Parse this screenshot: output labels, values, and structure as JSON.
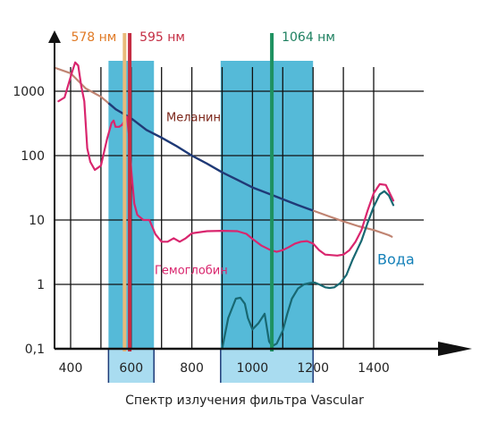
{
  "caption": "Спектр излучения фильтра Vascular",
  "chart_data": {
    "type": "line",
    "title": "",
    "xlabel": "",
    "ylabel": "",
    "xlim": [
      350,
      1500
    ],
    "ylim": [
      0.1,
      3000
    ],
    "yscale": "log",
    "x_ticks": [
      {
        "value": 400,
        "label": "400"
      },
      {
        "value": 600,
        "label": "600"
      },
      {
        "value": 800,
        "label": "800"
      },
      {
        "value": 1000,
        "label": "1000"
      },
      {
        "value": 1200,
        "label": "1200"
      },
      {
        "value": 1400,
        "label": "1400"
      }
    ],
    "y_ticks": [
      {
        "value": 0.1,
        "label": "0,1"
      },
      {
        "value": 1,
        "label": "1"
      },
      {
        "value": 10,
        "label": "10"
      },
      {
        "value": 100,
        "label": "100"
      },
      {
        "value": 1000,
        "label": "1000"
      }
    ],
    "x_gridlines": [
      500,
      700,
      900,
      1100,
      1300
    ],
    "emission_bands": [
      {
        "from": 525,
        "to": 675,
        "color": "#55bad8",
        "axis_color": "#a9dcf0"
      },
      {
        "from": 895,
        "to": 1200,
        "color": "#55bad8",
        "axis_color": "#a9dcf0"
      }
    ],
    "laser_lines": [
      {
        "wavelength": 578,
        "label": "578 нм",
        "color": "#e9ba7a",
        "label_color": "#e07a25"
      },
      {
        "wavelength": 595,
        "label": "595 нм",
        "color": "#c42d43",
        "label_color": "#c42d43"
      },
      {
        "wavelength": 1064,
        "label": "1064 нм",
        "color": "#1e9160",
        "label_color": "#1e8060"
      }
    ],
    "series": [
      {
        "name": "Меланин",
        "color": "#c08472",
        "label_color": "#7a2418",
        "label_at": [
          1000,
          0
        ],
        "label_value": 400,
        "highlight_color": "#1d3a78",
        "highlight_range": [
          525,
          1200
        ],
        "points": [
          [
            350,
            2300
          ],
          [
            400,
            1900
          ],
          [
            450,
            1100
          ],
          [
            500,
            820
          ],
          [
            550,
            520
          ],
          [
            600,
            380
          ],
          [
            650,
            250
          ],
          [
            700,
            190
          ],
          [
            750,
            140
          ],
          [
            800,
            100
          ],
          [
            850,
            75
          ],
          [
            900,
            55
          ],
          [
            950,
            42
          ],
          [
            1000,
            32
          ],
          [
            1050,
            26
          ],
          [
            1100,
            21
          ],
          [
            1150,
            17
          ],
          [
            1200,
            14
          ],
          [
            1250,
            11.5
          ],
          [
            1300,
            9.5
          ],
          [
            1350,
            8
          ],
          [
            1400,
            7
          ],
          [
            1450,
            5.8
          ],
          [
            1460,
            5.5
          ]
        ]
      },
      {
        "name": "Гемоглобин",
        "color": "#d9266e",
        "label_color": "#d9266e",
        "label_value": 1.7,
        "points": [
          [
            360,
            700
          ],
          [
            380,
            800
          ],
          [
            405,
            2000
          ],
          [
            415,
            2800
          ],
          [
            425,
            2500
          ],
          [
            435,
            1200
          ],
          [
            445,
            700
          ],
          [
            455,
            130
          ],
          [
            465,
            80
          ],
          [
            480,
            60
          ],
          [
            500,
            70
          ],
          [
            520,
            180
          ],
          [
            535,
            320
          ],
          [
            542,
            350
          ],
          [
            548,
            280
          ],
          [
            560,
            280
          ],
          [
            570,
            300
          ],
          [
            578,
            350
          ],
          [
            586,
            400
          ],
          [
            592,
            220
          ],
          [
            600,
            60
          ],
          [
            610,
            18
          ],
          [
            620,
            12
          ],
          [
            640,
            10
          ],
          [
            660,
            10
          ],
          [
            680,
            6
          ],
          [
            700,
            4.6
          ],
          [
            720,
            4.6
          ],
          [
            740,
            5.2
          ],
          [
            760,
            4.6
          ],
          [
            780,
            5.2
          ],
          [
            800,
            6.2
          ],
          [
            850,
            6.7
          ],
          [
            900,
            6.8
          ],
          [
            950,
            6.7
          ],
          [
            980,
            6.1
          ],
          [
            1000,
            5.1
          ],
          [
            1030,
            4
          ],
          [
            1060,
            3.4
          ],
          [
            1080,
            3.2
          ],
          [
            1100,
            3.4
          ],
          [
            1120,
            3.8
          ],
          [
            1140,
            4.3
          ],
          [
            1160,
            4.6
          ],
          [
            1180,
            4.7
          ],
          [
            1200,
            4.3
          ],
          [
            1220,
            3.4
          ],
          [
            1240,
            2.9
          ],
          [
            1280,
            2.8
          ],
          [
            1300,
            2.9
          ],
          [
            1320,
            3.4
          ],
          [
            1340,
            4.6
          ],
          [
            1360,
            7
          ],
          [
            1380,
            14
          ],
          [
            1400,
            26
          ],
          [
            1420,
            36
          ],
          [
            1440,
            35
          ],
          [
            1455,
            25
          ],
          [
            1465,
            20
          ]
        ]
      },
      {
        "name": "Вода",
        "color": "#186872",
        "label_color": "#1480b8",
        "label_value": 2.4,
        "points": [
          [
            900,
            0.1
          ],
          [
            920,
            0.3
          ],
          [
            945,
            0.6
          ],
          [
            960,
            0.62
          ],
          [
            975,
            0.5
          ],
          [
            985,
            0.3
          ],
          [
            1000,
            0.2
          ],
          [
            1020,
            0.25
          ],
          [
            1040,
            0.35
          ],
          [
            1055,
            0.13
          ],
          [
            1065,
            0.11
          ],
          [
            1080,
            0.12
          ],
          [
            1100,
            0.19
          ],
          [
            1115,
            0.35
          ],
          [
            1130,
            0.6
          ],
          [
            1150,
            0.86
          ],
          [
            1170,
            1
          ],
          [
            1190,
            1.05
          ],
          [
            1205,
            1.07
          ],
          [
            1220,
            1
          ],
          [
            1240,
            0.9
          ],
          [
            1255,
            0.88
          ],
          [
            1270,
            0.9
          ],
          [
            1290,
            1.05
          ],
          [
            1310,
            1.4
          ],
          [
            1330,
            2.4
          ],
          [
            1345,
            3.4
          ],
          [
            1360,
            4.8
          ],
          [
            1380,
            9
          ],
          [
            1400,
            16
          ],
          [
            1420,
            25
          ],
          [
            1435,
            28
          ],
          [
            1450,
            24
          ],
          [
            1465,
            17
          ]
        ]
      }
    ]
  }
}
